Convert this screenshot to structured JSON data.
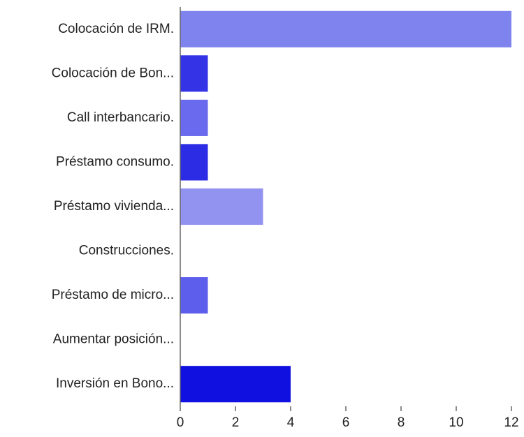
{
  "chart_data": {
    "type": "hbar",
    "categories": [
      "Colocación de IRM.",
      "Colocación de Bon...",
      "Call interbancario.",
      "Préstamo consumo.",
      "Préstamo vivienda...",
      "Construcciones.",
      "Préstamo de micro...",
      "Aumentar posición...",
      "Inversión en Bono..."
    ],
    "values": [
      12,
      1,
      1,
      1,
      3,
      0,
      1,
      0,
      4
    ],
    "colors": [
      "#7f83ee",
      "#3434e6",
      "#6a6aee",
      "#2c2ce4",
      "#9292f0",
      "#7f83ee",
      "#5e5eec",
      "#7f83ee",
      "#1010e0"
    ],
    "xlim": [
      0,
      12
    ],
    "xticks": [
      0,
      2,
      4,
      6,
      8,
      10,
      12
    ],
    "grid": false
  }
}
